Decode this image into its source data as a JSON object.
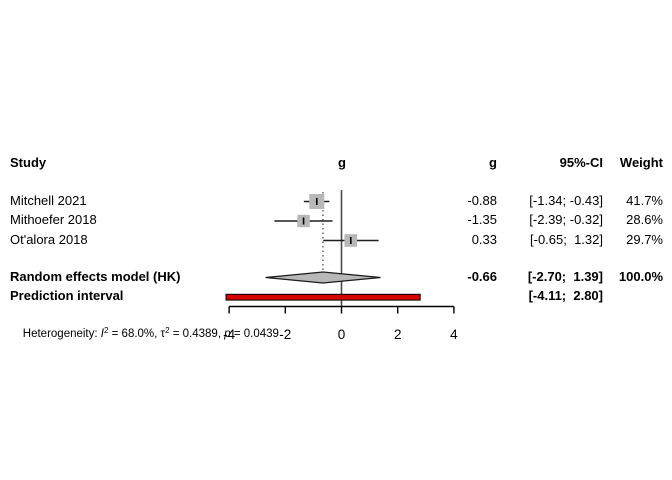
{
  "chart_data": {
    "type": "forest",
    "effect_measure": "g",
    "header": {
      "study": "Study",
      "plot_g": "g",
      "g": "g",
      "ci": "95%-CI",
      "weight": "Weight"
    },
    "studies": [
      {
        "label": "Mitchell 2021",
        "g": -0.88,
        "ci_lower": -1.34,
        "ci_upper": -0.43,
        "weight_pct": 41.7,
        "g_text": "-0.88",
        "ci_text": "[-1.34; -0.43]",
        "weight_text": "41.7%"
      },
      {
        "label": "Mithoefer 2018",
        "g": -1.35,
        "ci_lower": -2.39,
        "ci_upper": -0.32,
        "weight_pct": 28.6,
        "g_text": "-1.35",
        "ci_text": "[-2.39; -0.32]",
        "weight_text": "28.6%"
      },
      {
        "label": "Ot'alora 2018",
        "g": 0.33,
        "ci_lower": -0.65,
        "ci_upper": 1.32,
        "weight_pct": 29.7,
        "g_text": "0.33",
        "ci_text": "[-0.65;  1.32]",
        "weight_text": "29.7%"
      }
    ],
    "summary": {
      "label": "Random effects model (HK)",
      "g": -0.66,
      "ci_lower": -2.7,
      "ci_upper": 1.39,
      "weight_pct": 100.0,
      "g_text": "-0.66",
      "ci_text": "[-2.70;  1.39]",
      "weight_text": "100.0%"
    },
    "prediction": {
      "label": "Prediction interval",
      "ci_lower": -4.11,
      "ci_upper": 2.8,
      "ci_text": "[-4.11;  2.80]"
    },
    "heterogeneity": {
      "prefix": "Heterogeneity: ",
      "i_label": "I",
      "i_sup": "2",
      "seg1": " = 68.0%, τ",
      "tau_sup": "2",
      "seg2": " = 0.4389, ",
      "p_label": "p",
      "seg3": " = 0.0439"
    },
    "axis": {
      "range": [
        -4,
        4
      ],
      "ticks": [
        -4,
        -2,
        0,
        2,
        4
      ],
      "tick_labels": [
        "-4",
        "-2",
        "0",
        "2",
        "4"
      ]
    },
    "colors": {
      "square_fill": "#b8b8b8",
      "ci_line": "#1f1f1f",
      "marker_tick": "#000000",
      "diamond_fill": "#b8b8b8",
      "diamond_stroke": "#1a1a1a",
      "prediction_fill": "#d40000",
      "prediction_stroke": "#000000",
      "zero_line": "#4a4a4a",
      "dotted_line": "#3f3f3f",
      "axis_line": "#000000"
    }
  }
}
